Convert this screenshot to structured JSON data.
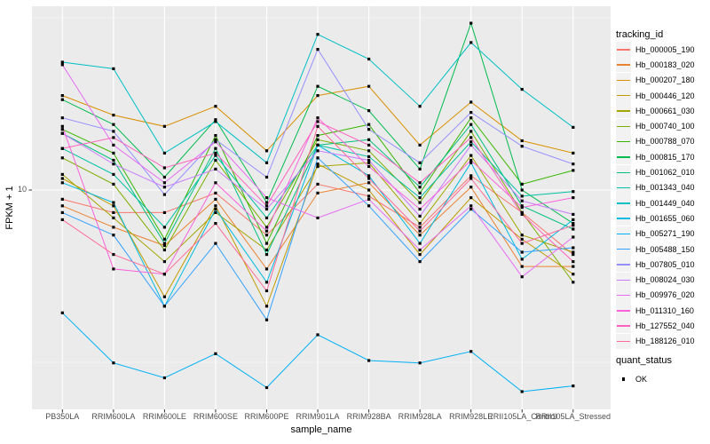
{
  "figure": {
    "x_axis_title": "sample_name",
    "y_axis_title": "FPKM + 1",
    "y_tick_label": "10",
    "series_legend_title": "tracking_id",
    "quant_legend_title": "quant_status",
    "quant_legend_items": [
      {
        "label": "OK"
      }
    ]
  },
  "colors": {
    "panel_background": "#EBEBEB",
    "gridline": "#FFFFFF",
    "axis_text": "#4D4D4D",
    "tick_mark": "#333333",
    "point": "#000000",
    "legend_key_background": "#F2F2F2",
    "page_background": "#FFFFFF"
  },
  "chart_data": {
    "type": "line",
    "title": "",
    "xlabel": "sample_name",
    "ylabel": "FPKM + 1",
    "y_scale": "log10",
    "y_ticks": [
      10
    ],
    "y_minor_gridlines": [
      3.162,
      31.62
    ],
    "ylim": [
      2.2,
      34
    ],
    "grid": true,
    "legend_position": "right",
    "point_shape": "filled-black-square",
    "categories": [
      "PB350LA",
      "RRIM600LA",
      "RRIM600LE",
      "RRIM600SE",
      "RRIM600PE",
      "RRIM901LA",
      "RRIM928BA",
      "RRIM928LA",
      "RRIM928LE",
      "RRII105LA_Control",
      "RRII105LA_Stressed"
    ],
    "series": [
      {
        "name": "Hb_000005_190",
        "color": "#F8766D",
        "values": [
          9.4,
          8.6,
          8.6,
          9.8,
          7.4,
          10.4,
          9.6,
          7.8,
          11.0,
          8.6,
          6.5
        ]
      },
      {
        "name": "Hb_000183_020",
        "color": "#EA8331",
        "values": [
          9.0,
          7.8,
          6.9,
          9.4,
          5.9,
          9.8,
          10.5,
          7.4,
          10.2,
          6.0,
          6.0
        ]
      },
      {
        "name": "Hb_000207_180",
        "color": "#D89000",
        "values": [
          18.8,
          16.5,
          15.3,
          17.5,
          13.0,
          18.8,
          20.0,
          13.5,
          18.0,
          13.9,
          12.8
        ]
      },
      {
        "name": "Hb_000446_120",
        "color": "#C09B00",
        "values": [
          10.8,
          9.0,
          4.9,
          9.0,
          4.6,
          11.9,
          10.0,
          6.5,
          9.5,
          7.2,
          5.7
        ]
      },
      {
        "name": "Hb_000661_030",
        "color": "#A3A500",
        "values": [
          11.1,
          8.3,
          6.2,
          8.6,
          6.7,
          11.7,
          12.0,
          8.0,
          12.6,
          7.4,
          6.6
        ]
      },
      {
        "name": "Hb_000740_100",
        "color": "#7CAE00",
        "values": [
          12.4,
          10.4,
          6.7,
          12.2,
          7.8,
          14.0,
          13.0,
          9.2,
          14.8,
          8.6,
          5.4
        ]
      },
      {
        "name": "Hb_000788_070",
        "color": "#39B600",
        "values": [
          15.0,
          12.8,
          7.2,
          14.4,
          7.0,
          14.4,
          15.5,
          9.8,
          16.2,
          10.4,
          11.4
        ]
      },
      {
        "name": "Hb_000815_170",
        "color": "#00BB4E",
        "values": [
          18.3,
          15.5,
          10.9,
          16.0,
          9.2,
          20.0,
          17.0,
          11.5,
          30.5,
          10.0,
          8.0
        ]
      },
      {
        "name": "Hb_001062_010",
        "color": "#00BF7D",
        "values": [
          14.6,
          12.2,
          7.0,
          13.2,
          6.5,
          13.5,
          14.0,
          10.2,
          15.5,
          9.0,
          7.7
        ]
      },
      {
        "name": "Hb_001343_040",
        "color": "#00C1A3",
        "values": [
          13.2,
          11.1,
          7.8,
          12.6,
          8.3,
          13.5,
          12.5,
          9.5,
          13.8,
          9.6,
          9.9
        ]
      },
      {
        "name": "Hb_001449_040",
        "color": "#00BFC4",
        "values": [
          23.5,
          22.5,
          12.8,
          15.8,
          12.0,
          28.3,
          24.0,
          17.5,
          26.8,
          19.6,
          15.2
        ]
      },
      {
        "name": "Hb_001655_060",
        "color": "#00BAE0",
        "values": [
          10.5,
          9.2,
          4.6,
          8.8,
          5.4,
          13.5,
          11.0,
          7.0,
          12.0,
          6.3,
          8.2
        ]
      },
      {
        "name": "Hb_005271_190",
        "color": "#00B0F6",
        "values": [
          4.4,
          3.15,
          2.85,
          3.35,
          2.67,
          3.8,
          3.2,
          3.15,
          3.4,
          2.6,
          2.7
        ]
      },
      {
        "name": "Hb_005488_150",
        "color": "#35A2FF",
        "values": [
          8.6,
          7.4,
          4.6,
          7.0,
          4.2,
          12.4,
          9.0,
          6.2,
          8.8,
          6.6,
          6.8
        ]
      },
      {
        "name": "Hb_007805_010",
        "color": "#9590FF",
        "values": [
          16.2,
          14.8,
          9.7,
          14.0,
          10.9,
          25.6,
          15.0,
          12.0,
          16.8,
          13.4,
          11.9
        ]
      },
      {
        "name": "Hb_008024_030",
        "color": "#C77CFF",
        "values": [
          14.6,
          11.9,
          10.2,
          11.5,
          8.8,
          13.0,
          12.2,
          8.4,
          13.5,
          9.3,
          8.5
        ]
      },
      {
        "name": "Hb_009976_020",
        "color": "#E76BF3",
        "values": [
          23.1,
          13.5,
          10.5,
          13.8,
          9.5,
          8.3,
          9.4,
          6.7,
          9.0,
          5.6,
          7.3
        ]
      },
      {
        "name": "Hb_011310_160",
        "color": "#FA62DB",
        "values": [
          15.3,
          5.9,
          5.7,
          10.5,
          7.6,
          16.2,
          11.7,
          8.8,
          12.2,
          8.9,
          9.5
        ]
      },
      {
        "name": "Hb_127552_040",
        "color": "#FF62BC",
        "values": [
          13.2,
          14.2,
          11.6,
          12.8,
          9.0,
          15.8,
          13.5,
          10.5,
          14.2,
          8.5,
          6.2
        ]
      },
      {
        "name": "Hb_188126_010",
        "color": "#FF6A98",
        "values": [
          8.2,
          6.5,
          5.7,
          8.0,
          5.1,
          15.3,
          10.8,
          7.6,
          10.8,
          7.0,
          7.9
        ]
      }
    ],
    "quant_status": {
      "title": "quant_status",
      "items": [
        "OK"
      ]
    }
  }
}
